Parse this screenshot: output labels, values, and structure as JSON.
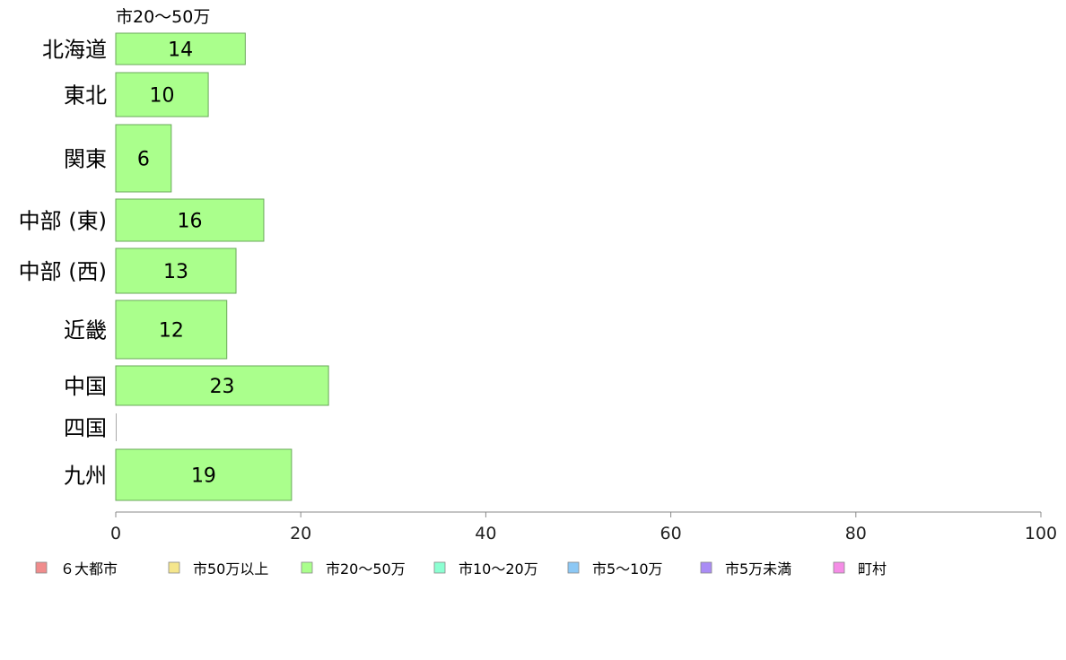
{
  "chart_data": {
    "type": "bar",
    "orientation": "horizontal",
    "stacked": true,
    "title": "市20～50万",
    "categories": [
      "北海道",
      "東北",
      "関東",
      "中部 (東)",
      "中部 (西)",
      "近畿",
      "中国",
      "四国",
      "九州"
    ],
    "series": [
      {
        "name": "６大都市",
        "color": "#f08c8c",
        "values": [
          0,
          0,
          0,
          0,
          0,
          0,
          0,
          0,
          0
        ]
      },
      {
        "name": "市50万以上",
        "color": "#f5e68c",
        "values": [
          0,
          0,
          0,
          0,
          0,
          0,
          0,
          0,
          0
        ]
      },
      {
        "name": "市20～50万",
        "color": "#aaff8c",
        "values": [
          14,
          10,
          6,
          16,
          13,
          12,
          23,
          0,
          19
        ]
      },
      {
        "name": "市10～20万",
        "color": "#8cffd2",
        "values": [
          0,
          0,
          0,
          0,
          0,
          0,
          0,
          0,
          0
        ]
      },
      {
        "name": "市5～10万",
        "color": "#8cc8f5",
        "values": [
          0,
          0,
          0,
          0,
          0,
          0,
          0,
          0,
          0
        ]
      },
      {
        "name": "市5万未満",
        "color": "#aa8cf5",
        "values": [
          0,
          0,
          0,
          0,
          0,
          0,
          0,
          0,
          0
        ]
      },
      {
        "name": "町村",
        "color": "#f58ce6",
        "values": [
          0,
          0,
          0,
          0,
          0,
          0,
          0,
          0,
          0
        ]
      }
    ],
    "xlim": [
      0,
      100
    ],
    "xticks": [
      "0",
      "20",
      "40",
      "60",
      "80",
      "100"
    ],
    "xlabel": "",
    "ylabel": "",
    "grid": false,
    "legend_position": "bottom",
    "visible_series": "市20～50万"
  }
}
